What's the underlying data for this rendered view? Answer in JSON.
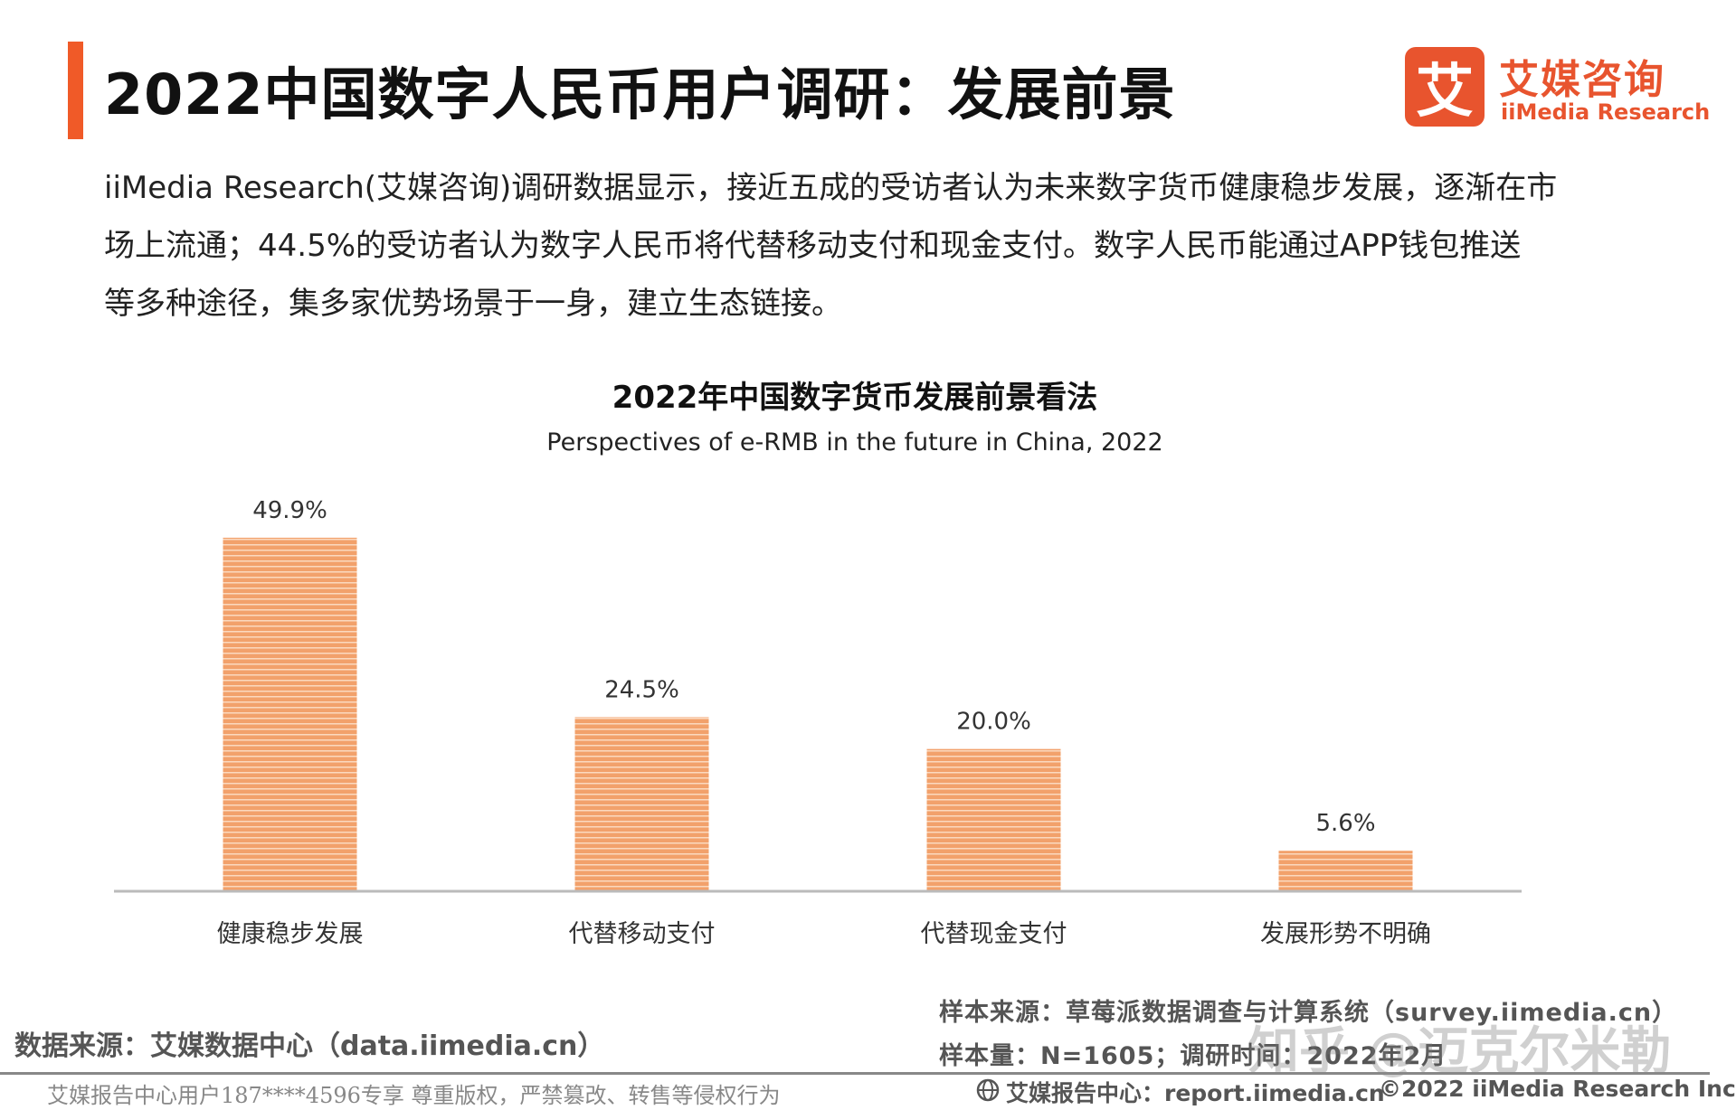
{
  "header": {
    "title": "2022中国数字人民币用户调研：发展前景",
    "accent_color": "#F05A28"
  },
  "logo": {
    "glyph": "艾",
    "name_cn": "艾媒咨询",
    "name_en": "iiMedia Research",
    "color": "#E8542E"
  },
  "description": {
    "lines": [
      "iiMedia Research(艾媒咨询)调研数据显示，接近五成的受访者认为未来数字货币健康稳步发展，逐渐在市",
      "场上流通；44.5%的受访者认为数字人民币将代替移动支付和现金支付。数字人民币能通过APP钱包推送",
      "等多种途径，集多家优势场景于一身，建立生态链接。"
    ]
  },
  "chart_data": {
    "type": "bar",
    "title": "2022年中国数字货币发展前景看法",
    "subtitle": "Perspectives of e-RMB in the future in China, 2022",
    "categories": [
      "健康稳步发展",
      "代替移动支付",
      "代替现金支付",
      "发展形势不明确"
    ],
    "values": [
      49.9,
      24.5,
      20.0,
      5.6
    ],
    "value_labels": [
      "49.9%",
      "24.5%",
      "20.0%",
      "5.6%"
    ],
    "unit": "%",
    "ylim": [
      0,
      55
    ],
    "grid": false,
    "legend": "none",
    "bar_color": "#F2A16B",
    "bar_stripe_color": "#FBD9BF"
  },
  "footer": {
    "data_source": "数据来源：艾媒数据中心（data.iimedia.cn）",
    "sample_source": "样本来源：草莓派数据调查与计算系统（survey.iimedia.cn）",
    "sample_size": "样本量：N=1605；调研时间：2022年2月",
    "watermark": "知乎 @迈克尔米勒",
    "user_notice": "艾媒报告中心用户187****4596专享 尊重版权，严禁篡改、转售等侵权行为",
    "report_center": "艾媒报告中心：report.iimedia.cn",
    "copyright": "©2022 iiMedia Research Inc"
  }
}
